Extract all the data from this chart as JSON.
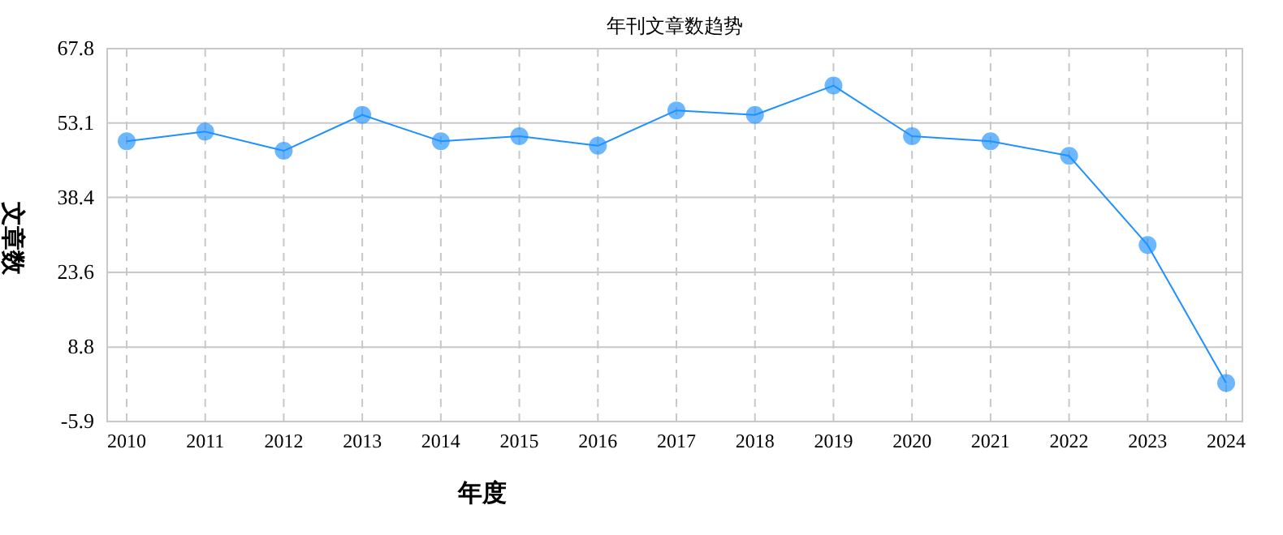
{
  "chart_data": {
    "type": "line",
    "title": "年刊文章数趋势",
    "xlabel": "年度",
    "ylabel": "文章数",
    "categories": [
      "2010",
      "2011",
      "2012",
      "2013",
      "2014",
      "2015",
      "2016",
      "2017",
      "2018",
      "2019",
      "2020",
      "2021",
      "2022",
      "2023",
      "2024"
    ],
    "series": [
      {
        "color": "#1e90ff",
        "values": [
          49.5,
          51.4,
          47.6,
          54.7,
          49.5,
          50.5,
          48.6,
          55.6,
          54.7,
          60.5,
          50.5,
          49.5,
          46.6,
          29.0,
          1.7
        ]
      }
    ],
    "ylim": [
      -5.9,
      67.8
    ],
    "yticks": [
      -5.9,
      8.8,
      23.6,
      38.4,
      53.1,
      67.8
    ],
    "grid": true,
    "marker": "circle",
    "line_style": "solid"
  }
}
